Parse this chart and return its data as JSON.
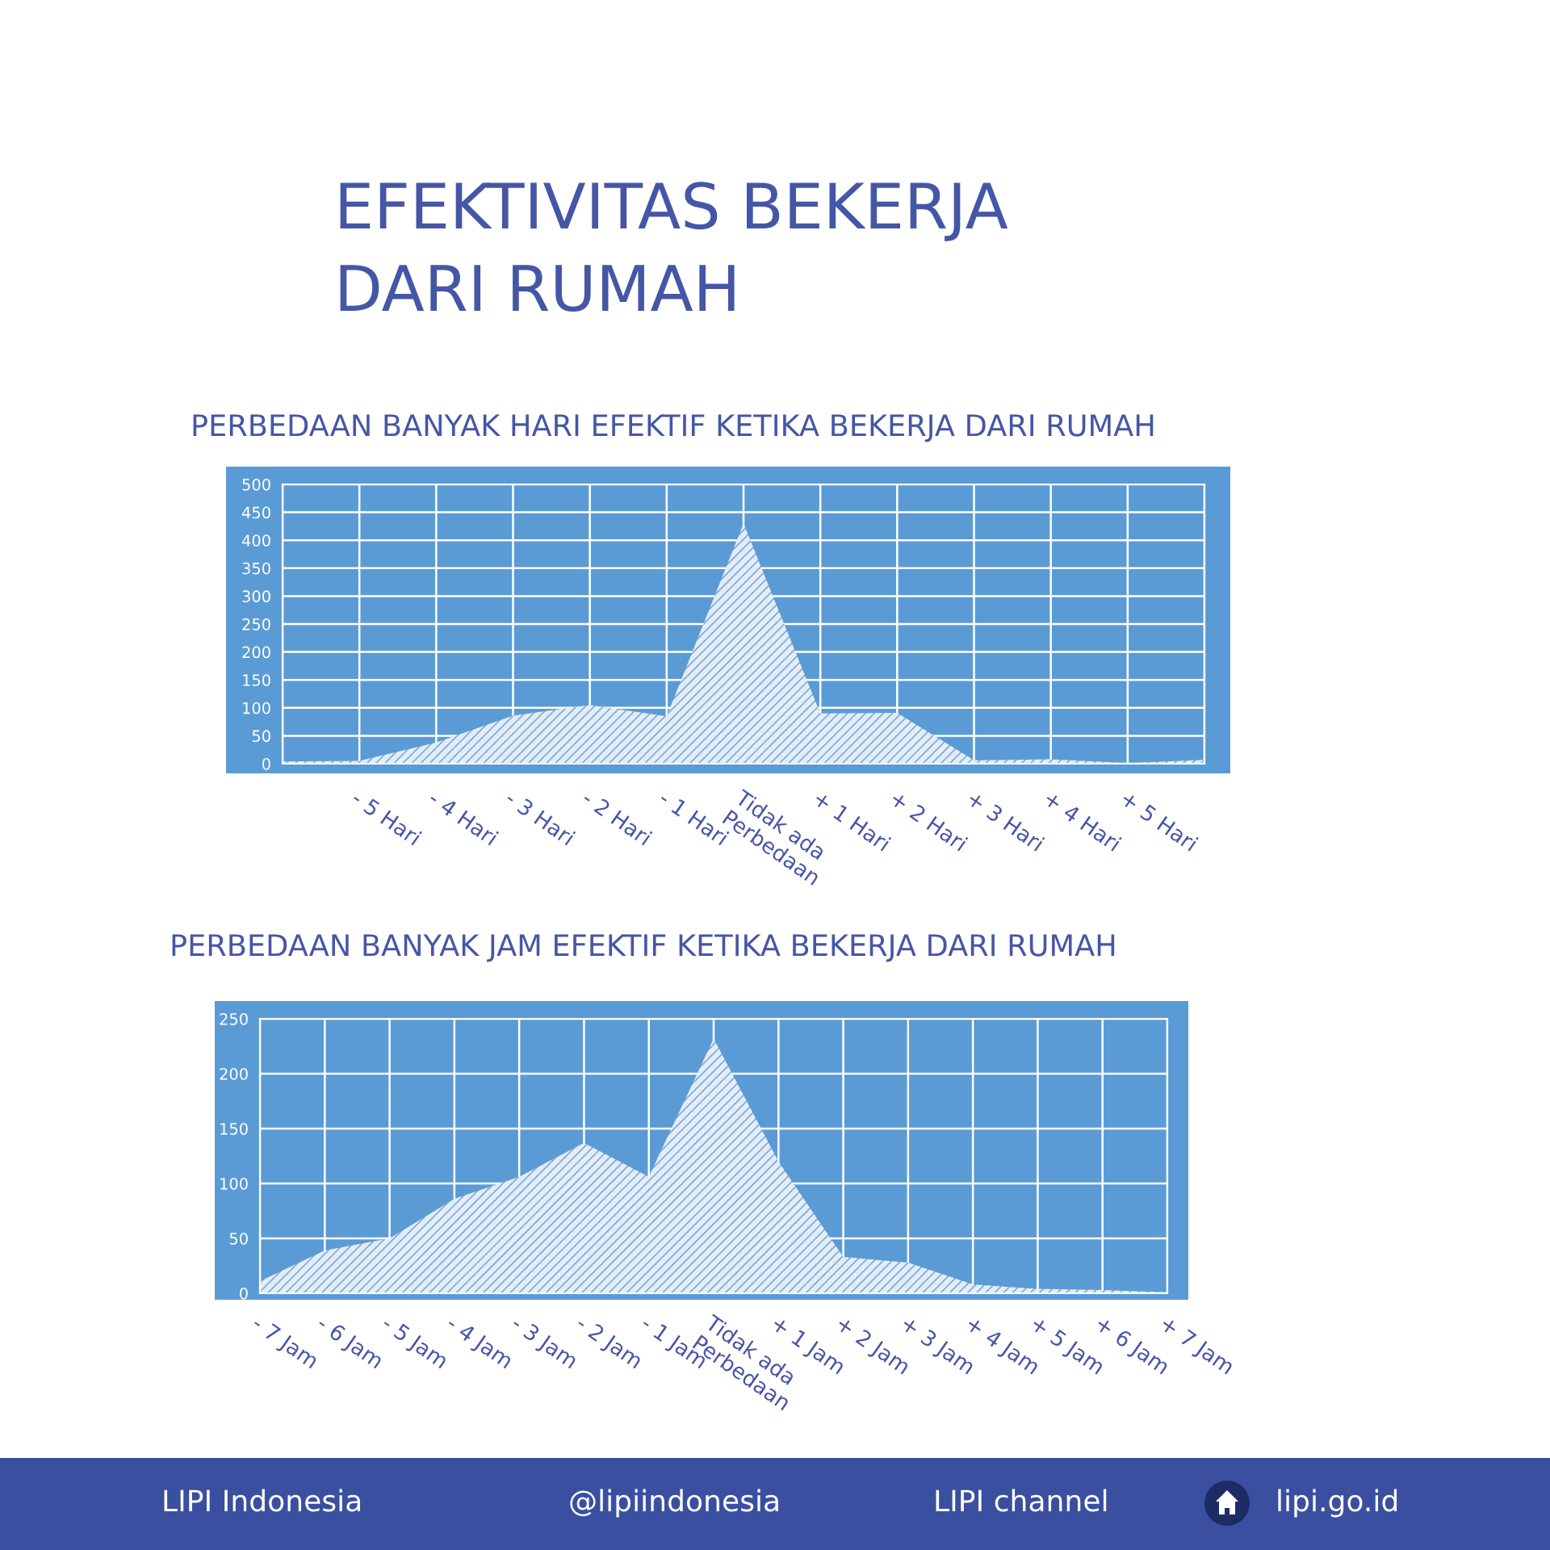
{
  "chart_data": [
    {
      "type": "area",
      "title": "EFEKTIVITAS BEKERJA\nDARI RUMAH",
      "subtitle": "PERBEDAAN BANYAK HARI EFEKTIF KETIKA BEKERJA DARI RUMAH",
      "categories": [
        null,
        "- 5 Hari",
        "- 4 Hari",
        "- 3 Hari",
        "- 2 Hari",
        "- 1 Hari",
        "Tidak ada\nPerbedaan",
        "+ 1 Hari",
        "+ 2 Hari",
        "+ 3 Hari",
        "+ 4 Hari",
        "+ 5 Hari",
        null
      ],
      "values": [
        4,
        5,
        38,
        86,
        105,
        85,
        430,
        90,
        91,
        6,
        8,
        1,
        7
      ],
      "color": "#e3edf8",
      "ylim": [
        0,
        500
      ],
      "yticks": [
        0,
        50,
        100,
        150,
        200,
        250,
        300,
        350,
        400,
        450,
        500
      ],
      "grid": true
    },
    {
      "type": "area",
      "title": "PERBEDAAN BANYAK JAM EFEKTIF KETIKA BEKERJA DARI RUMAH",
      "categories": [
        "- 7 Jam",
        "- 6 Jam",
        "- 5 Jam",
        "- 4 Jam",
        "- 3 Jam",
        "- 2 Jam",
        "- 1 Jam",
        "Tidak ada\nPerbedaan",
        "+ 1 Jam",
        "+ 2 Jam",
        "+ 3 Jam",
        "+ 4 Jam",
        "+ 5 Jam",
        "+ 6 Jam",
        "+ 7 Jam"
      ],
      "values": [
        11,
        39,
        50,
        86,
        106,
        137,
        106,
        232,
        120,
        33,
        28,
        8,
        4,
        3,
        1
      ],
      "color": "#e3edf8",
      "ylim": [
        0,
        250
      ],
      "yticks": [
        0,
        50,
        100,
        150,
        200,
        250
      ],
      "grid": true,
      "annotations": [
        "LIPI Indonesia",
        "@lipiindonesia",
        "LIPI channel",
        "lipi.go.id"
      ]
    }
  ]
}
